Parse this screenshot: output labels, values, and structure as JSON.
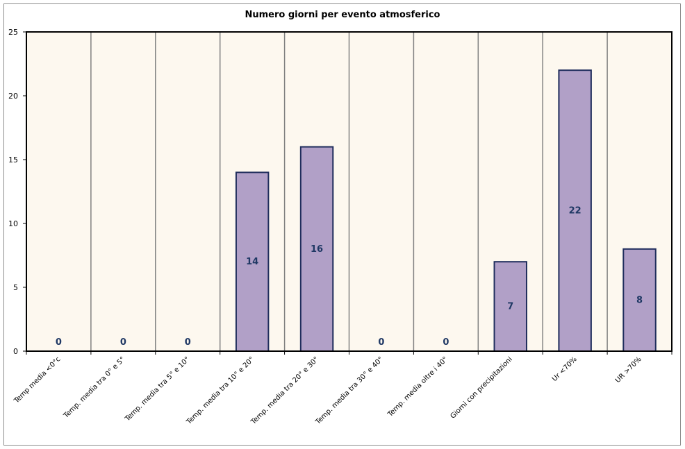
{
  "chart_data": {
    "type": "bar",
    "title": "Numero giorni per evento atmosferico",
    "categories": [
      "Temp media <0°c",
      "Temp. media tra 0° e 5°",
      "Temp. media tra 5° e 10°",
      "Temp. media tra 10° e 20°",
      "Temp. media tra 20° e 30°",
      "Temp. media tra 30° e 40°",
      "Temp. media oltre i 40°",
      "Giorni con precipitazioni",
      "Ur <70%",
      "UR >70%"
    ],
    "values": [
      0,
      0,
      0,
      14,
      16,
      0,
      0,
      7,
      22,
      8
    ],
    "ylim": [
      0,
      25
    ],
    "yticks": [
      0,
      5,
      10,
      15,
      20,
      25
    ],
    "xlabel": "",
    "ylabel": "",
    "data_labels": true,
    "grid": "vertical",
    "legend": "none",
    "colors": {
      "plot_bg": "#fdf8ef",
      "bar_fill": "#b1a0c7",
      "bar_stroke": "#1f2d5c",
      "label": "#1f3864",
      "grid": "#808080"
    }
  }
}
